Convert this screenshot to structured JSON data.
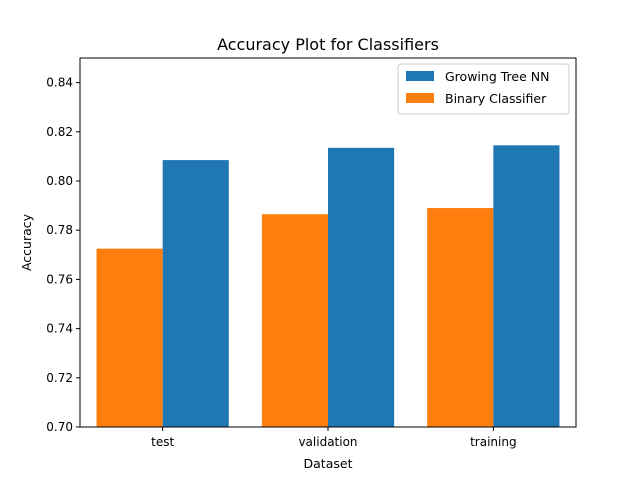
{
  "chart_data": {
    "type": "bar",
    "title": "Accuracy Plot for Classifiers",
    "xlabel": "Dataset",
    "ylabel": "Accuracy",
    "categories": [
      "test",
      "validation",
      "training"
    ],
    "ylim": [
      0.7,
      0.85
    ],
    "yticks": [
      "0.70",
      "0.72",
      "0.74",
      "0.76",
      "0.78",
      "0.80",
      "0.82",
      "0.84"
    ],
    "grid": false,
    "legend_position": "top-right",
    "series": [
      {
        "name": "Binary Classifier",
        "color": "#ff7f0e",
        "values": [
          0.7725,
          0.7865,
          0.789
        ]
      },
      {
        "name": "Growing Tree NN",
        "color": "#1f77b4",
        "values": [
          0.8085,
          0.8135,
          0.8145
        ]
      }
    ],
    "legend_order": [
      "Growing Tree NN",
      "Binary Classifier"
    ]
  }
}
